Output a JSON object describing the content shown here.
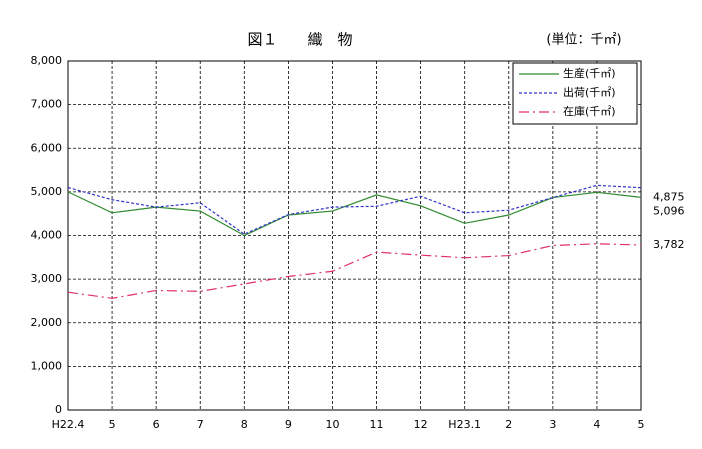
{
  "chart_data": {
    "type": "line",
    "title": "図１　　織　物",
    "unit_note": "(単位：千㎡)",
    "categories": [
      "H22.4",
      "5",
      "6",
      "7",
      "8",
      "9",
      "10",
      "11",
      "12",
      "H23.1",
      "2",
      "3",
      "4",
      "5"
    ],
    "series": [
      {
        "name": "生産(千㎡)",
        "color": "#2e8b2e",
        "dash": "none",
        "values": [
          5000,
          4520,
          4650,
          4560,
          4000,
          4470,
          4560,
          4930,
          4680,
          4280,
          4470,
          4870,
          4990,
          4875
        ],
        "value_labels": [
          null,
          null,
          null,
          null,
          null,
          null,
          null,
          null,
          null,
          null,
          null,
          null,
          null,
          "4,875"
        ]
      },
      {
        "name": "出荷(千㎡)",
        "color": "#3333cc",
        "dash": "3 2",
        "values": [
          5100,
          4820,
          4650,
          4750,
          4030,
          4480,
          4650,
          4670,
          4900,
          4520,
          4580,
          4870,
          5150,
          5096
        ],
        "value_labels": [
          null,
          null,
          null,
          null,
          null,
          null,
          null,
          null,
          null,
          null,
          null,
          null,
          null,
          "5,096"
        ]
      },
      {
        "name": "在庫(千㎡)",
        "color": "#e0306a",
        "dash": "10 4 2 4",
        "values": [
          2700,
          2560,
          2740,
          2720,
          2890,
          3060,
          3180,
          3620,
          3550,
          3490,
          3540,
          3770,
          3810,
          3782
        ],
        "value_labels": [
          null,
          null,
          null,
          null,
          null,
          null,
          null,
          null,
          null,
          null,
          null,
          null,
          null,
          "3,782"
        ]
      }
    ],
    "ylim": [
      0,
      8000
    ],
    "yticks": [
      0,
      {
        "value": 1000,
        "label": "1,000"
      },
      {
        "value": 2000,
        "label": "2,000"
      },
      {
        "value": 3000,
        "label": "3,000"
      },
      {
        "value": 4000,
        "label": "4,000"
      },
      {
        "value": 5000,
        "label": "5,000"
      },
      {
        "value": 6000,
        "label": "6,000"
      },
      {
        "value": 7000,
        "label": "7,000"
      },
      {
        "value": 8000,
        "label": "8,000"
      }
    ],
    "grid": true,
    "legend": "top-right"
  }
}
